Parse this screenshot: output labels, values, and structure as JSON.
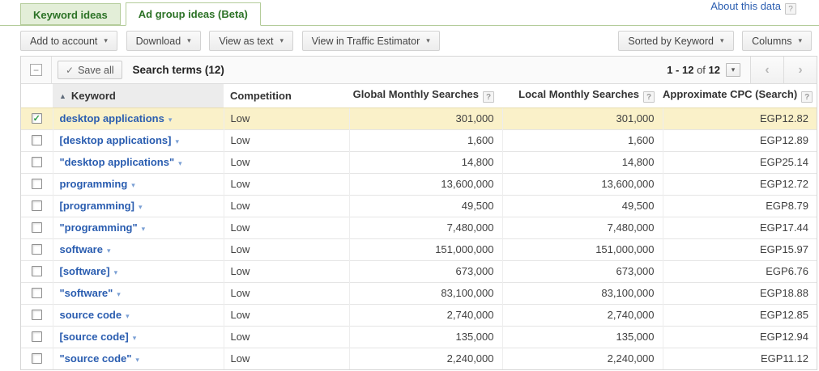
{
  "page": {
    "about_link": "About this data"
  },
  "icons": {
    "help": "?",
    "dropdown": "▾",
    "sort_asc": "▲",
    "check": "✓",
    "save_check": "✓",
    "collapse": "−",
    "prev": "‹",
    "next": "›"
  },
  "tabs": {
    "keyword_ideas": "Keyword ideas",
    "ad_group_ideas": "Ad group ideas (Beta)"
  },
  "toolbar": {
    "add_to_account": "Add to account",
    "download": "Download",
    "view_as_text": "View as text",
    "view_in_traffic_estimator": "View in Traffic Estimator",
    "sorted_by": "Sorted by Keyword",
    "columns": "Columns"
  },
  "list_header": {
    "save_all": "Save all",
    "title": "Search terms (12)",
    "pagination_range": "1 - 12",
    "pagination_of": "of",
    "pagination_total": "12"
  },
  "table": {
    "headers": {
      "keyword": "Keyword",
      "competition": "Competition",
      "global": "Global Monthly Searches",
      "local": "Local Monthly Searches",
      "cpc": "Approximate CPC (Search)"
    },
    "rows": [
      {
        "keyword": "desktop applications",
        "competition": "Low",
        "global": "301,000",
        "local": "301,000",
        "cpc": "EGP12.82",
        "checked": true,
        "highlighted": true
      },
      {
        "keyword": "[desktop applications]",
        "competition": "Low",
        "global": "1,600",
        "local": "1,600",
        "cpc": "EGP12.89",
        "checked": false,
        "highlighted": false
      },
      {
        "keyword": "\"desktop applications\"",
        "competition": "Low",
        "global": "14,800",
        "local": "14,800",
        "cpc": "EGP25.14",
        "checked": false,
        "highlighted": false
      },
      {
        "keyword": "programming",
        "competition": "Low",
        "global": "13,600,000",
        "local": "13,600,000",
        "cpc": "EGP12.72",
        "checked": false,
        "highlighted": false
      },
      {
        "keyword": "[programming]",
        "competition": "Low",
        "global": "49,500",
        "local": "49,500",
        "cpc": "EGP8.79",
        "checked": false,
        "highlighted": false
      },
      {
        "keyword": "\"programming\"",
        "competition": "Low",
        "global": "7,480,000",
        "local": "7,480,000",
        "cpc": "EGP17.44",
        "checked": false,
        "highlighted": false
      },
      {
        "keyword": "software",
        "competition": "Low",
        "global": "151,000,000",
        "local": "151,000,000",
        "cpc": "EGP15.97",
        "checked": false,
        "highlighted": false
      },
      {
        "keyword": "[software]",
        "competition": "Low",
        "global": "673,000",
        "local": "673,000",
        "cpc": "EGP6.76",
        "checked": false,
        "highlighted": false
      },
      {
        "keyword": "\"software\"",
        "competition": "Low",
        "global": "83,100,000",
        "local": "83,100,000",
        "cpc": "EGP18.88",
        "checked": false,
        "highlighted": false
      },
      {
        "keyword": "source code",
        "competition": "Low",
        "global": "2,740,000",
        "local": "2,740,000",
        "cpc": "EGP12.85",
        "checked": false,
        "highlighted": false
      },
      {
        "keyword": "[source code]",
        "competition": "Low",
        "global": "135,000",
        "local": "135,000",
        "cpc": "EGP12.94",
        "checked": false,
        "highlighted": false
      },
      {
        "keyword": "\"source code\"",
        "competition": "Low",
        "global": "2,240,000",
        "local": "2,240,000",
        "cpc": "EGP11.12",
        "checked": false,
        "highlighted": false
      }
    ]
  },
  "colors": {
    "tab_green_text": "#2c7226",
    "tab_green_bg": "#e3eed8",
    "tab_border_green": "#b4cc9a",
    "link_blue": "#2a5db0",
    "selected_row_yellow": "#faf1c9",
    "checked_green": "#2f9e44"
  }
}
